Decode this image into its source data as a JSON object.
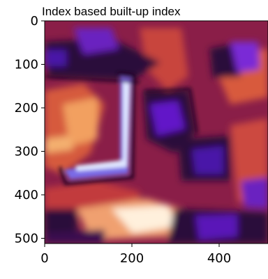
{
  "chart_data": {
    "type": "heatmap",
    "title": "Index based built-up index",
    "xlabel": "",
    "ylabel": "",
    "xlim": [
      0,
      512
    ],
    "ylim": [
      512,
      0
    ],
    "x_ticks": [
      0,
      200,
      400
    ],
    "y_ticks": [
      0,
      100,
      200,
      300,
      400,
      500
    ],
    "colormap": "magma-like (dark purple to bright white)",
    "colors": {
      "low": "#5a10b0",
      "mid_low": "#2a0a3a",
      "mid": "#a8284a",
      "mid_high": "#e0784a",
      "high": "#fff3e8"
    }
  }
}
